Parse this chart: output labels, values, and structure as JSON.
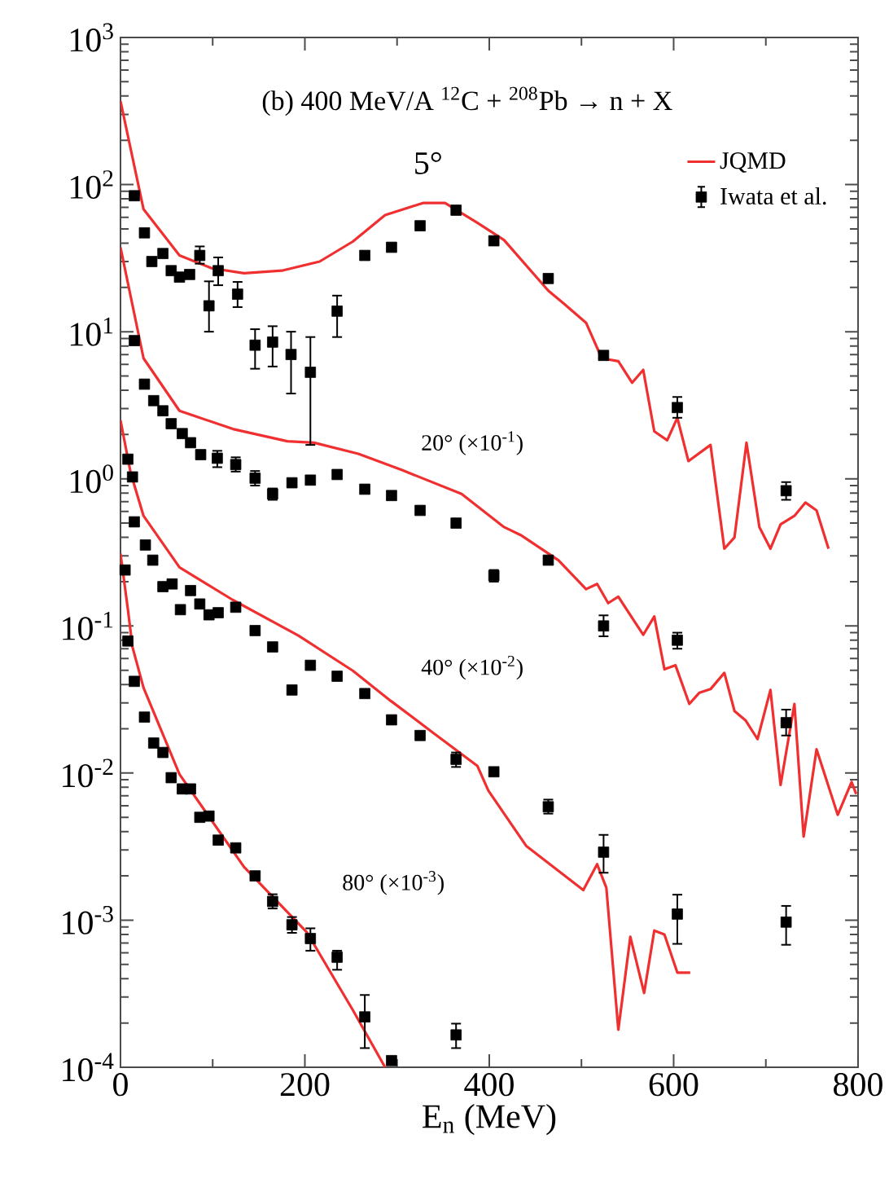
{
  "chart_data": {
    "type": "line",
    "log": "y",
    "legend": "top right",
    "xlabel": "E$_{n}$ (MeV)",
    "annotations": [
      "(b) 400 MeV/A  $^{12}$C + $^{208}$Pb  → n + X",
      "5°",
      "20° (×10$^{-1}$)",
      "40° (×10$^{-2}$)",
      "80° (×10$^{-3}$)"
    ],
    "xlim": [
      0,
      800
    ],
    "ylim": [
      0.0001,
      1000
    ],
    "xticks": [
      0,
      200,
      400,
      600,
      800
    ],
    "yticks": [
      {
        "value": 0.0001,
        "label": "10$^{-4}$"
      },
      {
        "value": 0.001,
        "label": "10$^{-3}$"
      },
      {
        "value": 0.01,
        "label": "10$^{-2}$"
      },
      {
        "value": 0.1,
        "label": "10$^{-1}$"
      },
      {
        "value": 1,
        "label": "10$^{0}$"
      },
      {
        "value": 10,
        "label": "10$^{1}$"
      },
      {
        "value": 100,
        "label": "10$^{2}$"
      },
      {
        "value": 1000,
        "label": "10$^{3}$"
      }
    ],
    "series": [
      {
        "name": "JQMD",
        "color": "#f03030",
        "x": [
          0,
          25,
          64,
          99,
          134,
          175,
          216,
          252,
          287,
          328,
          352,
          387,
          416,
          464,
          481,
          505,
          522,
          540,
          555,
          567,
          579,
          593,
          604,
          616,
          640,
          655,
          666,
          679,
          693,
          705,
          716,
          731,
          743,
          755,
          768
        ],
        "values": [
          370,
          68,
          33,
          27,
          25,
          26,
          30,
          41,
          62,
          75,
          75,
          55,
          42,
          19,
          15.5,
          11.5,
          6.6,
          6.3,
          4.5,
          5.5,
          2.1,
          1.83,
          2.6,
          1.32,
          1.7,
          0.335,
          0.4,
          1.76,
          0.47,
          0.335,
          0.49,
          0.56,
          0.69,
          0.61,
          0.335
        ]
      },
      {
        "color": "#f03030",
        "x": [
          0,
          25,
          64,
          122,
          181,
          210,
          258,
          305,
          370,
          416,
          434,
          475,
          505,
          517,
          529,
          540,
          567,
          579,
          590,
          602,
          617,
          628,
          640,
          655,
          666,
          678,
          691,
          705,
          716,
          731,
          741,
          755,
          778,
          793,
          798
        ],
        "values": [
          37.5,
          6.6,
          2.9,
          2.18,
          1.8,
          1.76,
          1.48,
          1.15,
          0.79,
          0.47,
          0.415,
          0.28,
          0.178,
          0.193,
          0.143,
          0.158,
          0.087,
          0.116,
          0.0507,
          0.054,
          0.0295,
          0.0352,
          0.0372,
          0.048,
          0.0264,
          0.0228,
          0.017,
          0.0367,
          0.0083,
          0.0295,
          0.0037,
          0.0145,
          0.0052,
          0.0087,
          0.0072
        ]
      },
      {
        "color": "#f03030",
        "x": [
          0,
          11,
          25,
          64,
          122,
          193,
          252,
          293,
          340,
          387,
          399,
          440,
          502,
          517,
          527,
          540,
          553,
          568,
          579,
          590,
          604,
          618
        ],
        "values": [
          2.5,
          1.1,
          0.56,
          0.25,
          0.15,
          0.086,
          0.0496,
          0.031,
          0.0186,
          0.0112,
          0.0076,
          0.0032,
          0.0016,
          0.0024,
          0.00166,
          0.00018,
          0.00077,
          0.00032,
          0.00085,
          0.0008,
          0.00044,
          0.00044
        ]
      },
      {
        "color": "#f03030",
        "x": [
          0,
          8,
          13,
          25,
          64,
          134,
          202,
          252,
          287
        ],
        "values": [
          0.31,
          0.13,
          0.072,
          0.038,
          0.0098,
          0.0023,
          0.00083,
          0.000245,
          0.0001
        ]
      },
      {
        "type": "scatter",
        "name": "Iwata et al.",
        "color": "#000000",
        "marker": "square",
        "x": [
          15,
          26,
          34,
          46,
          55,
          64,
          75,
          86,
          96,
          106,
          127,
          146,
          165,
          185,
          206,
          235,
          265,
          294,
          325,
          364,
          405,
          464,
          524,
          604,
          722
        ],
        "values": [
          84,
          47,
          30,
          34,
          26,
          23.5,
          24.5,
          33,
          15,
          26,
          18,
          8.1,
          8.5,
          7.0,
          5.3,
          13.8,
          33,
          37.5,
          52.5,
          67,
          41.5,
          23,
          6.9,
          3.05,
          0.83
        ],
        "errors": [
          null,
          null,
          null,
          null,
          null,
          null,
          null,
          [
            29,
            38
          ],
          [
            10,
            22
          ],
          [
            20.7,
            32
          ],
          [
            14.7,
            21.8
          ],
          [
            5.6,
            10.4
          ],
          [
            5.8,
            10.9
          ],
          [
            3.8,
            10
          ],
          [
            1.7,
            9.2
          ],
          [
            9.2,
            17.6
          ],
          null,
          null,
          null,
          null,
          null,
          null,
          null,
          [
            2.6,
            3.6
          ],
          [
            0.72,
            0.95
          ]
        ]
      },
      {
        "type": "scatter",
        "color": "#000000",
        "marker": "square",
        "x": [
          15,
          26,
          36,
          46,
          55,
          67,
          76,
          87,
          105,
          125,
          146,
          165,
          186,
          206,
          235,
          265,
          294,
          325,
          364,
          405,
          464,
          524,
          604,
          722
        ],
        "values": [
          8.7,
          4.4,
          3.4,
          2.9,
          2.37,
          2.03,
          1.76,
          1.46,
          1.38,
          1.25,
          1.01,
          0.79,
          0.94,
          0.98,
          1.07,
          0.85,
          0.77,
          0.61,
          0.5,
          0.22,
          0.28,
          0.1,
          0.08,
          0.022
        ],
        "errors": [
          null,
          null,
          null,
          null,
          null,
          null,
          null,
          null,
          [
            1.2,
            1.55
          ],
          [
            1.12,
            1.4
          ],
          [
            0.9,
            1.13
          ],
          [
            0.72,
            0.86
          ],
          null,
          null,
          null,
          null,
          null,
          null,
          null,
          [
            0.2,
            0.24
          ],
          null,
          [
            0.085,
            0.118
          ],
          [
            0.07,
            0.09
          ],
          [
            0.018,
            0.027
          ]
        ]
      },
      {
        "type": "scatter",
        "color": "#000000",
        "marker": "square",
        "x": [
          8,
          13,
          15,
          27,
          35,
          46,
          56,
          65,
          76,
          86,
          96,
          106,
          125,
          146,
          165,
          186,
          206,
          235,
          265,
          294,
          325,
          364,
          405,
          464,
          524,
          604,
          722
        ],
        "values": [
          1.36,
          1.03,
          0.51,
          0.355,
          0.28,
          0.185,
          0.193,
          0.129,
          0.174,
          0.141,
          0.119,
          0.123,
          0.134,
          0.093,
          0.072,
          0.0367,
          0.054,
          0.0455,
          0.0347,
          0.023,
          0.018,
          0.0124,
          0.0102,
          0.0059,
          0.0029,
          0.0011,
          0.00097
        ],
        "errors": [
          null,
          null,
          null,
          null,
          null,
          null,
          null,
          null,
          null,
          null,
          null,
          null,
          null,
          null,
          null,
          null,
          null,
          null,
          null,
          null,
          null,
          [
            0.011,
            0.0138
          ],
          null,
          [
            0.0053,
            0.0066
          ],
          [
            0.0021,
            0.0038
          ],
          [
            0.00069,
            0.00149
          ],
          [
            0.00068,
            0.00125
          ]
        ]
      },
      {
        "type": "scatter",
        "color": "#000000",
        "marker": "square",
        "x": [
          5,
          8,
          15,
          26,
          36,
          46,
          55,
          67,
          76,
          86,
          96,
          106,
          125,
          146,
          165,
          186,
          206,
          235,
          265,
          294,
          364
        ],
        "values": [
          0.24,
          0.079,
          0.042,
          0.024,
          0.016,
          0.0138,
          0.0093,
          0.0078,
          0.0078,
          0.005,
          0.0051,
          0.0035,
          0.0031,
          0.002,
          0.00134,
          0.00093,
          0.00075,
          0.00056,
          0.00022,
          0.000111,
          0.000166
        ],
        "errors": [
          null,
          null,
          null,
          null,
          null,
          null,
          null,
          null,
          null,
          null,
          null,
          null,
          null,
          null,
          [
            0.0012,
            0.0015
          ],
          [
            0.00082,
            0.00105
          ],
          [
            0.00062,
            0.00088
          ],
          [
            0.00046,
            0.00062
          ],
          [
            0.000135,
            0.00031
          ],
          null,
          [
            0.000135,
            0.000198
          ]
        ]
      }
    ]
  }
}
